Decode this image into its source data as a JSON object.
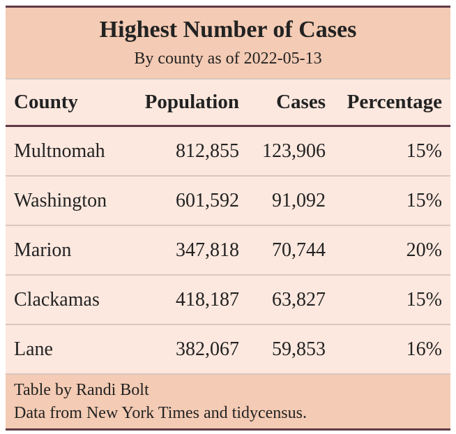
{
  "title": "Highest Number of Cases",
  "subtitle": "By county as of 2022-05-13",
  "columns": [
    "County",
    "Population",
    "Cases",
    "Percentage"
  ],
  "rows": [
    [
      "Multnomah",
      "812,855",
      "123,906",
      "15%"
    ],
    [
      "Washington",
      "601,592",
      "91,092",
      "15%"
    ],
    [
      "Marion",
      "347,818",
      "70,744",
      "20%"
    ],
    [
      "Clackamas",
      "418,187",
      "63,827",
      "15%"
    ],
    [
      "Lane",
      "382,067",
      "59,853",
      "16%"
    ]
  ],
  "footer": {
    "credit": "Table by Randi Bolt",
    "source": "Data from New York Times and tidycensus."
  }
}
